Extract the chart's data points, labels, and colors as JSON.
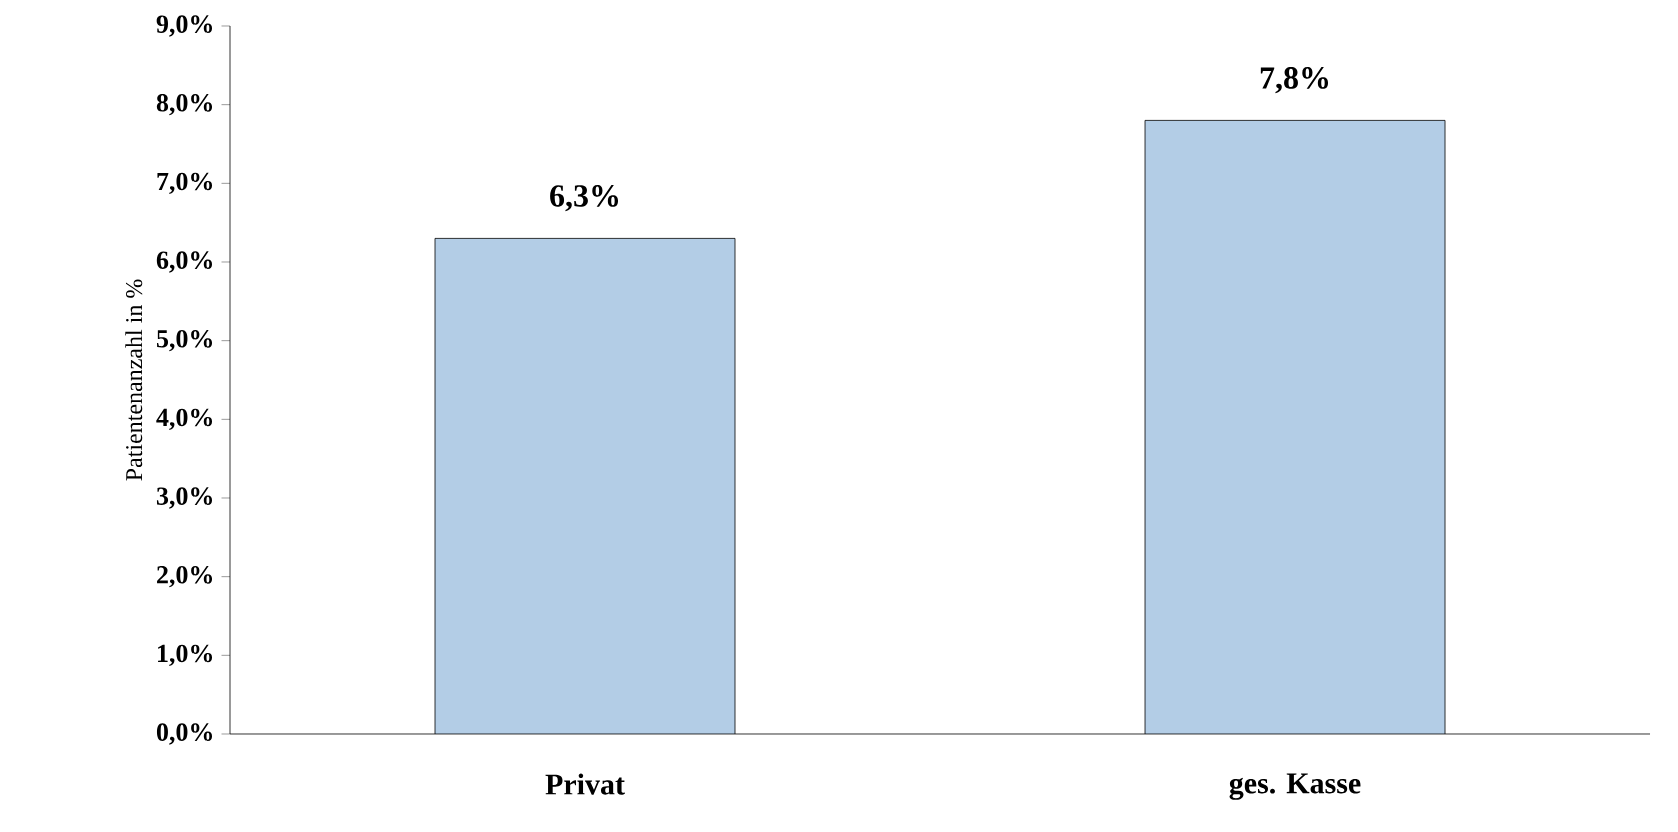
{
  "chart_data": {
    "type": "bar",
    "ylabel": "Patientenanzahl in %",
    "categories": [
      "Privat",
      "ges. Kasse"
    ],
    "values": [
      6.3,
      7.8
    ],
    "value_labels": [
      "6,3%",
      "7,8%"
    ],
    "color": "#b3cde6",
    "ylim": [
      0,
      9
    ],
    "yticks": [
      {
        "value": 0,
        "label": "0,0%"
      },
      {
        "value": 1,
        "label": "1,0%"
      },
      {
        "value": 2,
        "label": "2,0%"
      },
      {
        "value": 3,
        "label": "3,0%"
      },
      {
        "value": 4,
        "label": "4,0%"
      },
      {
        "value": 5,
        "label": "5,0%"
      },
      {
        "value": 6,
        "label": "6,0%"
      },
      {
        "value": 7,
        "label": "7,0%"
      },
      {
        "value": 8,
        "label": "8,0%"
      },
      {
        "value": 9,
        "label": "9,0%"
      }
    ]
  }
}
